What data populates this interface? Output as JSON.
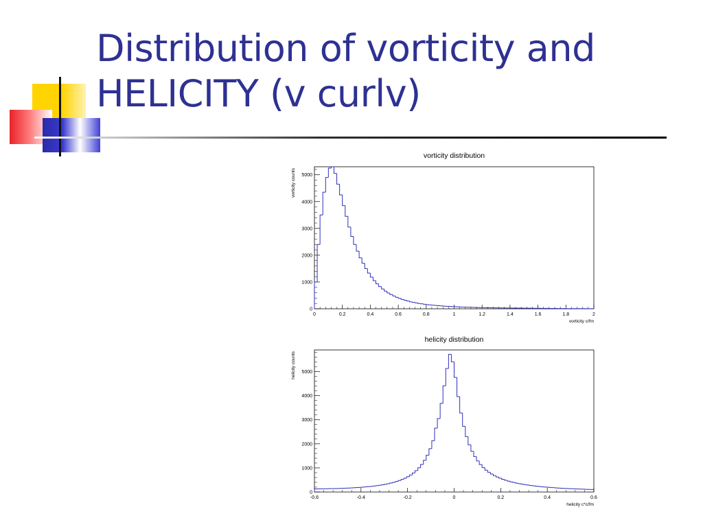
{
  "slide": {
    "title_line1": "Distribution of vorticity and",
    "title_line2": "HELICITY (v curlv)"
  },
  "colors": {
    "title": "#2e3192",
    "histogram": "#2e2eb8",
    "axis": "#000000"
  },
  "chart_data": [
    {
      "type": "bar",
      "title": "vorticity distribution",
      "xlabel": "vorticity c/fm",
      "ylabel": "vorticity counts",
      "xlim": [
        0,
        2
      ],
      "ylim": [
        0,
        5300
      ],
      "xticks": [
        "0",
        "0.2",
        "0.4",
        "0.6",
        "0.8",
        "1",
        "1.2",
        "1.4",
        "1.6",
        "1.8",
        "2"
      ],
      "yticks": [
        "0",
        "1000",
        "2000",
        "3000",
        "4000",
        "5000"
      ],
      "bin_width": 0.02,
      "values": [
        1000,
        2400,
        3500,
        4350,
        4900,
        5250,
        5300,
        5050,
        4650,
        4250,
        3850,
        3450,
        3050,
        2700,
        2400,
        2150,
        1900,
        1700,
        1500,
        1330,
        1180,
        1050,
        930,
        830,
        740,
        660,
        590,
        530,
        480,
        430,
        390,
        350,
        320,
        290,
        260,
        240,
        220,
        200,
        185,
        170,
        155,
        145,
        135,
        125,
        115,
        108,
        100,
        94,
        88,
        82,
        77,
        72,
        68,
        64,
        60,
        57,
        54,
        51,
        48,
        46,
        44,
        42,
        40,
        38,
        36,
        34,
        33,
        31,
        30,
        29,
        28,
        27,
        26,
        25,
        24,
        23,
        22,
        21,
        20,
        19,
        18,
        17,
        16,
        15,
        14,
        13,
        12,
        11,
        10,
        9,
        8,
        8,
        7,
        7,
        6,
        6,
        5,
        5,
        4,
        4
      ]
    },
    {
      "type": "bar",
      "title": "helicity distribution",
      "xlabel": "helicity c*c/fm",
      "ylabel": "helicity counts",
      "xlim": [
        -0.6,
        0.6
      ],
      "ylim": [
        0,
        5900
      ],
      "xticks": [
        "-0.6",
        "-0.4",
        "-0.2",
        "0",
        "0.2",
        "0.4",
        "0.6"
      ],
      "yticks": [
        "0",
        "1000",
        "2000",
        "3000",
        "4000",
        "5000"
      ],
      "bin_width": 0.012,
      "values": [
        130,
        131,
        132,
        134,
        136,
        138,
        141,
        144,
        147,
        151,
        155,
        160,
        165,
        171,
        178,
        185,
        193,
        203,
        213,
        224,
        236,
        250,
        265,
        282,
        301,
        322,
        346,
        373,
        404,
        438,
        478,
        523,
        575,
        636,
        707,
        790,
        888,
        1004,
        1145,
        1317,
        1530,
        1800,
        2130,
        2650,
        3050,
        3680,
        4410,
        5130,
        5720,
        5410,
        4760,
        3960,
        3280,
        2730,
        2300,
        1960,
        1690,
        1470,
        1290,
        1140,
        1015,
        910,
        820,
        745,
        680,
        622,
        572,
        528,
        489,
        454,
        422,
        394,
        368,
        345,
        324,
        305,
        287,
        271,
        256,
        243,
        230,
        219,
        208,
        198,
        189,
        180,
        172,
        164,
        157,
        151,
        145,
        139,
        134,
        129,
        124,
        120,
        116,
        112,
        108,
        105
      ]
    }
  ]
}
